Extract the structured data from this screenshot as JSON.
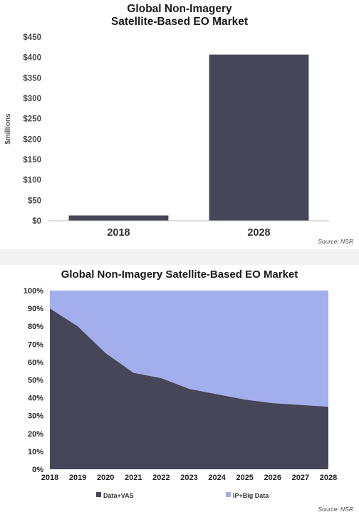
{
  "chart_data": [
    {
      "type": "bar",
      "title_line1": "Global Non-Imagery",
      "title_line2": "Satellite-Based EO Market",
      "ylabel": "$millions",
      "categories": [
        "2018",
        "2028"
      ],
      "values": [
        13,
        407
      ],
      "ylim": [
        0,
        450
      ],
      "yticks": [
        "$0",
        "$50",
        "$100",
        "$150",
        "$200",
        "$250",
        "$300",
        "$350",
        "$400",
        "$450"
      ],
      "grid": false,
      "source": "Source: NSR",
      "colors": {
        "bar": "#454657"
      }
    },
    {
      "type": "area",
      "stacked": true,
      "title": "Global Non-Imagery Satellite-Based EO Market",
      "x": [
        "2018",
        "2019",
        "2020",
        "2021",
        "2022",
        "2023",
        "2024",
        "2025",
        "2026",
        "2027",
        "2028"
      ],
      "series": [
        {
          "name": "Data+VAS",
          "values": [
            90,
            80,
            65,
            54,
            51,
            45,
            42,
            39,
            37,
            36,
            35
          ],
          "color": "#454657"
        },
        {
          "name": "IP+Big Data",
          "values": [
            10,
            20,
            35,
            46,
            49,
            55,
            58,
            61,
            63,
            64,
            65
          ],
          "color": "#a3aeed"
        }
      ],
      "ylim": [
        0,
        100
      ],
      "yticks": [
        "0%",
        "10%",
        "20%",
        "30%",
        "40%",
        "50%",
        "60%",
        "70%",
        "80%",
        "90%",
        "100%"
      ],
      "legend_position": "bottom",
      "source": "Source: NSR"
    }
  ]
}
